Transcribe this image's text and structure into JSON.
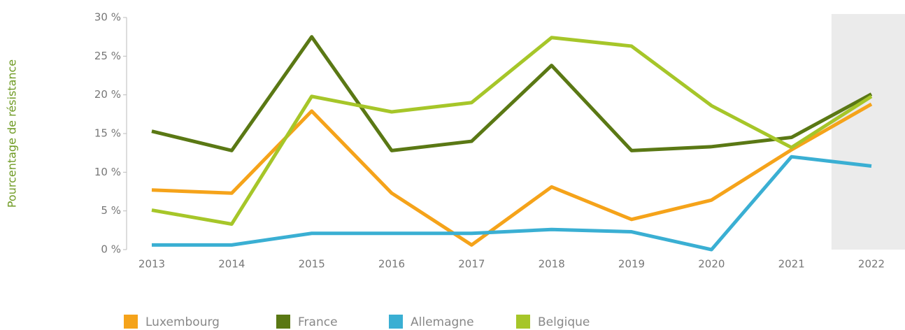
{
  "chart_data": {
    "type": "line",
    "y_label": "Pourcentage de résistance",
    "categories": [
      "2013",
      "2014",
      "2015",
      "2016",
      "2017",
      "2018",
      "2019",
      "2020",
      "2021",
      "2022"
    ],
    "series": [
      {
        "name": "Luxembourg",
        "color": "#f5a31a",
        "values": [
          7.7,
          7.3,
          17.9,
          7.3,
          0.6,
          8.1,
          3.9,
          6.4,
          12.9,
          18.8
        ]
      },
      {
        "name": "France",
        "color": "#5a7814",
        "values": [
          15.3,
          12.8,
          27.5,
          12.8,
          14.0,
          23.8,
          12.8,
          13.3,
          14.5,
          20.1
        ]
      },
      {
        "name": "Allemagne",
        "color": "#3aafd3",
        "values": [
          0.6,
          0.6,
          2.1,
          2.1,
          2.1,
          2.6,
          2.3,
          0,
          12.0,
          10.8
        ]
      },
      {
        "name": "Belgique",
        "color": "#a6c629",
        "values": [
          5.1,
          3.3,
          19.8,
          17.8,
          19.0,
          27.4,
          26.3,
          18.6,
          13.2,
          19.8
        ]
      }
    ],
    "ylim": [
      0,
      30
    ],
    "yticks": [
      {
        "value": 0,
        "label": "0 %"
      },
      {
        "value": 5,
        "label": "5 %"
      },
      {
        "value": 10,
        "label": "10 %"
      },
      {
        "value": 15,
        "label": "15 %"
      },
      {
        "value": 20,
        "label": "20 %"
      },
      {
        "value": 25,
        "label": "25 %"
      },
      {
        "value": 30,
        "label": "30 %"
      }
    ]
  }
}
